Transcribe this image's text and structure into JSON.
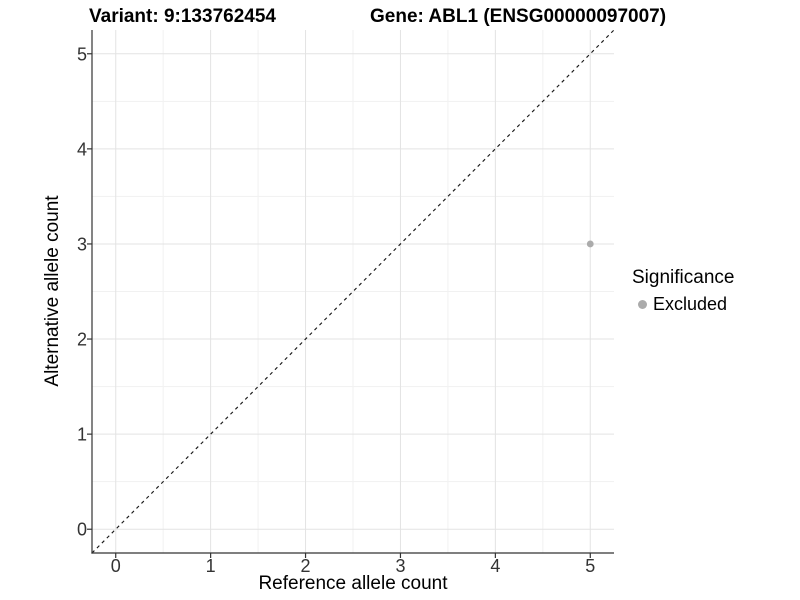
{
  "title": {
    "variant": "Variant: 9:133762454",
    "gene": "Gene: ABL1 (ENSG00000097007)"
  },
  "x_axis": {
    "label": "Reference allele count",
    "tick_labels": [
      "0",
      "1",
      "2",
      "3",
      "4",
      "5"
    ]
  },
  "y_axis": {
    "label": "Alternative allele count",
    "tick_labels": [
      "0",
      "1",
      "2",
      "3",
      "4",
      "5"
    ]
  },
  "legend": {
    "title": "Significance",
    "items": [
      {
        "label": "Excluded",
        "color": "#ababab"
      }
    ]
  },
  "colors": {
    "background": "#ffffff",
    "grid_major": "#e3e3e3",
    "grid_minor": "#f1f1f1",
    "axis_line": "#333333",
    "tick_mark": "#333333",
    "tick_label": "#333333",
    "point": "#ababab",
    "reference_line": "#1a1a1a"
  },
  "chart_data": {
    "type": "scatter",
    "title": "Variant: 9:133762454   Gene: ABL1 (ENSG00000097007)",
    "xlabel": "Reference allele count",
    "ylabel": "Alternative allele count",
    "xlim": [
      -0.25,
      5.25
    ],
    "ylim": [
      -0.25,
      5.25
    ],
    "xticks": [
      0,
      1,
      2,
      3,
      4,
      5
    ],
    "yticks": [
      0,
      1,
      2,
      3,
      4,
      5
    ],
    "minor_xticks": [
      0.5,
      1.5,
      2.5,
      3.5,
      4.5
    ],
    "minor_yticks": [
      0.5,
      1.5,
      2.5,
      3.5,
      4.5
    ],
    "grid": {
      "major": true,
      "minor": true
    },
    "series": [
      {
        "name": "Excluded",
        "color": "#ababab",
        "marker": "circle",
        "points": [
          {
            "x": 5,
            "y": 3
          }
        ]
      }
    ],
    "reference_line": {
      "slope": 1,
      "intercept": 0,
      "style": "dashed",
      "color": "#1a1a1a"
    },
    "legend": {
      "title": "Significance",
      "position": "right",
      "entries": [
        "Excluded"
      ]
    }
  }
}
